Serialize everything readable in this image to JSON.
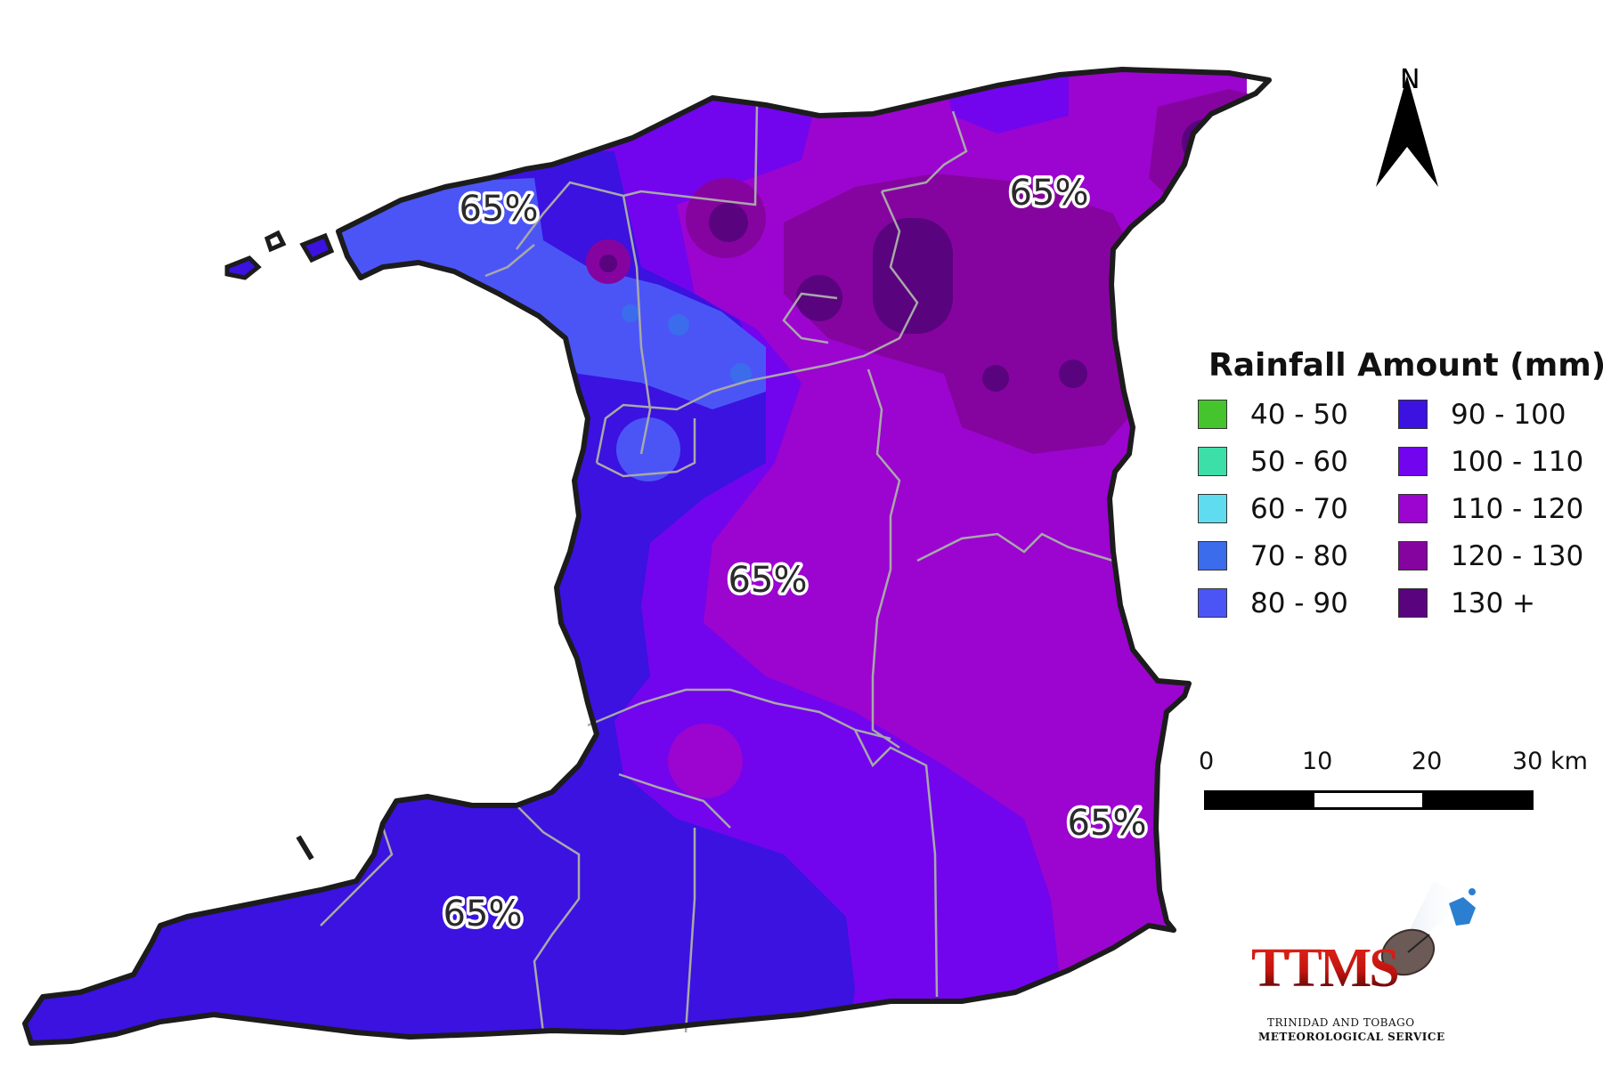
{
  "map": {
    "percent_labels": [
      "65%",
      "65%",
      "65%",
      "65%",
      "65%",
      "65%"
    ]
  },
  "legend": {
    "title": "Rainfall Amount (mm)",
    "items": [
      {
        "label": "40 - 50",
        "color": "#46c42e"
      },
      {
        "label": "50 - 60",
        "color": "#3ddfa8"
      },
      {
        "label": "60 - 70",
        "color": "#5fdcf0"
      },
      {
        "label": "70 - 80",
        "color": "#3a6cec"
      },
      {
        "label": "80 - 90",
        "color": "#4b55f6"
      },
      {
        "label": "90 - 100",
        "color": "#3b12e0"
      },
      {
        "label": "100 - 110",
        "color": "#7205ee"
      },
      {
        "label": "110 - 120",
        "color": "#9b05cf"
      },
      {
        "label": "120 - 130",
        "color": "#85049f"
      },
      {
        "label": "130 +",
        "color": "#5a037e"
      }
    ]
  },
  "scale_bar": {
    "ticks": [
      "0",
      "10",
      "20",
      "30 km"
    ]
  },
  "north_arrow": {
    "label": "N"
  },
  "logo": {
    "name": "TTMS",
    "line1": "TRINIDAD AND TOBAGO",
    "line2": "METEOROLOGICAL SERVICE",
    "icon": "satellite-dish-icon"
  }
}
